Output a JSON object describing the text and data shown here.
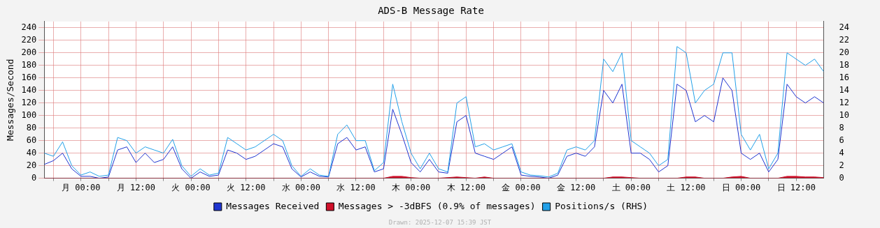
{
  "chart_data": {
    "type": "line",
    "title": "ADS-B Message Rate",
    "ylabel": "Messages/Second",
    "x": [
      "2025-11-30T16:00",
      "2025-11-30T18:00",
      "2025-11-30T20:00",
      "2025-11-30T22:00",
      "2025-12-01T00:00",
      "2025-12-01T02:00",
      "2025-12-01T04:00",
      "2025-12-01T06:00",
      "2025-12-01T08:00",
      "2025-12-01T10:00",
      "2025-12-01T12:00",
      "2025-12-01T14:00",
      "2025-12-01T16:00",
      "2025-12-01T18:00",
      "2025-12-01T20:00",
      "2025-12-01T22:00",
      "2025-12-02T00:00",
      "2025-12-02T02:00",
      "2025-12-02T04:00",
      "2025-12-02T06:00",
      "2025-12-02T08:00",
      "2025-12-02T10:00",
      "2025-12-02T12:00",
      "2025-12-02T14:00",
      "2025-12-02T16:00",
      "2025-12-02T18:00",
      "2025-12-02T20:00",
      "2025-12-02T22:00",
      "2025-12-03T00:00",
      "2025-12-03T02:00",
      "2025-12-03T04:00",
      "2025-12-03T06:00",
      "2025-12-03T08:00",
      "2025-12-03T10:00",
      "2025-12-03T12:00",
      "2025-12-03T14:00",
      "2025-12-03T16:00",
      "2025-12-03T18:00",
      "2025-12-03T20:00",
      "2025-12-03T22:00",
      "2025-12-04T00:00",
      "2025-12-04T02:00",
      "2025-12-04T04:00",
      "2025-12-04T06:00",
      "2025-12-04T08:00",
      "2025-12-04T10:00",
      "2025-12-04T12:00",
      "2025-12-04T14:00",
      "2025-12-04T16:00",
      "2025-12-04T18:00",
      "2025-12-04T20:00",
      "2025-12-04T22:00",
      "2025-12-05T00:00",
      "2025-12-05T02:00",
      "2025-12-05T04:00",
      "2025-12-05T06:00",
      "2025-12-05T08:00",
      "2025-12-05T10:00",
      "2025-12-05T12:00",
      "2025-12-05T14:00",
      "2025-12-05T16:00",
      "2025-12-05T18:00",
      "2025-12-05T20:00",
      "2025-12-05T22:00",
      "2025-12-06T00:00",
      "2025-12-06T02:00",
      "2025-12-06T04:00",
      "2025-12-06T06:00",
      "2025-12-06T08:00",
      "2025-12-06T10:00",
      "2025-12-06T12:00",
      "2025-12-06T14:00",
      "2025-12-06T16:00",
      "2025-12-06T18:00",
      "2025-12-06T20:00",
      "2025-12-06T22:00",
      "2025-12-07T00:00",
      "2025-12-07T02:00",
      "2025-12-07T04:00",
      "2025-12-07T06:00",
      "2025-12-07T08:00",
      "2025-12-07T10:00",
      "2025-12-07T12:00",
      "2025-12-07T14:00",
      "2025-12-07T16:00",
      "2025-12-07T18:00"
    ],
    "xlim": [
      "2025-11-30T16:00",
      "2025-12-07T18:00"
    ],
    "xticks": [
      {
        "value": "2025-11-30T18:00",
        "label": null
      },
      {
        "value": "2025-12-01T00:00",
        "label": "月 00:00"
      },
      {
        "value": "2025-12-01T06:00",
        "label": null
      },
      {
        "value": "2025-12-01T12:00",
        "label": "月 12:00"
      },
      {
        "value": "2025-12-01T18:00",
        "label": null
      },
      {
        "value": "2025-12-02T00:00",
        "label": "火 00:00"
      },
      {
        "value": "2025-12-02T06:00",
        "label": null
      },
      {
        "value": "2025-12-02T12:00",
        "label": "火 12:00"
      },
      {
        "value": "2025-12-02T18:00",
        "label": null
      },
      {
        "value": "2025-12-03T00:00",
        "label": "水 00:00"
      },
      {
        "value": "2025-12-03T06:00",
        "label": null
      },
      {
        "value": "2025-12-03T12:00",
        "label": "水 12:00"
      },
      {
        "value": "2025-12-03T18:00",
        "label": null
      },
      {
        "value": "2025-12-04T00:00",
        "label": "木 00:00"
      },
      {
        "value": "2025-12-04T06:00",
        "label": null
      },
      {
        "value": "2025-12-04T12:00",
        "label": "木 12:00"
      },
      {
        "value": "2025-12-04T18:00",
        "label": null
      },
      {
        "value": "2025-12-05T00:00",
        "label": "金 00:00"
      },
      {
        "value": "2025-12-05T06:00",
        "label": null
      },
      {
        "value": "2025-12-05T12:00",
        "label": "金 12:00"
      },
      {
        "value": "2025-12-05T18:00",
        "label": null
      },
      {
        "value": "2025-12-06T00:00",
        "label": "土 00:00"
      },
      {
        "value": "2025-12-06T06:00",
        "label": null
      },
      {
        "value": "2025-12-06T12:00",
        "label": "土 12:00"
      },
      {
        "value": "2025-12-06T18:00",
        "label": null
      },
      {
        "value": "2025-12-07T00:00",
        "label": "日 00:00"
      },
      {
        "value": "2025-12-07T06:00",
        "label": null
      },
      {
        "value": "2025-12-07T12:00",
        "label": "日 12:00"
      }
    ],
    "ylim": [
      0,
      250
    ],
    "yticks": [
      0,
      20,
      40,
      60,
      80,
      100,
      120,
      140,
      160,
      180,
      200,
      220,
      240
    ],
    "y2lim": [
      0,
      25
    ],
    "y2ticks": [
      0,
      2,
      4,
      6,
      8,
      10,
      12,
      14,
      16,
      18,
      20,
      22,
      24
    ],
    "grid": true,
    "legend": "bottom",
    "marker": "none",
    "series": [
      {
        "name": "Messages Received",
        "color": "#1f35d0",
        "values": [
          22,
          28,
          40,
          15,
          3,
          3,
          0,
          2,
          45,
          50,
          25,
          40,
          25,
          30,
          50,
          15,
          0,
          10,
          3,
          5,
          45,
          40,
          30,
          35,
          45,
          55,
          50,
          15,
          2,
          10,
          3,
          2,
          55,
          65,
          45,
          50,
          10,
          15,
          110,
          70,
          25,
          10,
          30,
          10,
          8,
          90,
          100,
          40,
          35,
          30,
          40,
          50,
          5,
          3,
          2,
          0,
          5,
          35,
          40,
          35,
          50,
          140,
          120,
          150,
          40,
          40,
          30,
          10,
          20,
          150,
          140,
          90,
          100,
          90,
          160,
          140,
          40,
          30,
          40,
          10,
          30,
          150,
          130,
          120,
          130,
          120
        ]
      },
      {
        "name": "Messages > -3dBFS (0.9% of messages)",
        "type": "area",
        "color": "#d0102a",
        "values": [
          0,
          0,
          0,
          0,
          0,
          0,
          0,
          0,
          0,
          0,
          0,
          0,
          0,
          0,
          0,
          0,
          0,
          0,
          0,
          0,
          0,
          0,
          0,
          0,
          0,
          0,
          0,
          0,
          0,
          0,
          0,
          0,
          0,
          0,
          0,
          0,
          0,
          0,
          3,
          3,
          1,
          0,
          0,
          0,
          1,
          2,
          1,
          0,
          2,
          0,
          0,
          0,
          0,
          0,
          0,
          0,
          0,
          0,
          0,
          0,
          0,
          0,
          2,
          2,
          1,
          0,
          0,
          0,
          0,
          0,
          2,
          2,
          0,
          0,
          0,
          2,
          3,
          0,
          0,
          0,
          0,
          3,
          3,
          2,
          2,
          1
        ]
      },
      {
        "name": "Positions/s (RHS)",
        "color": "#22a0e8",
        "axis": "y2",
        "values": [
          4,
          3.5,
          5.8,
          2,
          0.5,
          1,
          0.3,
          0.5,
          6.5,
          6,
          4,
          5,
          4.5,
          4,
          6.2,
          2,
          0.3,
          1.5,
          0.5,
          0.8,
          6.5,
          5.5,
          4.5,
          5,
          6,
          7,
          6,
          2,
          0.3,
          1.5,
          0.5,
          0.3,
          7,
          8.5,
          6,
          6,
          1.2,
          2.5,
          15,
          9,
          4,
          1.5,
          4,
          1.5,
          1,
          12,
          13,
          5,
          5.5,
          4.5,
          5,
          5.5,
          1,
          0.5,
          0.4,
          0.2,
          0.8,
          4.5,
          5,
          4.5,
          6,
          19,
          17,
          20,
          6,
          5,
          4,
          2,
          3,
          21,
          20,
          12,
          14,
          15,
          20,
          20,
          7,
          4.5,
          7,
          1.5,
          4,
          20,
          19,
          18,
          19,
          17
        ]
      }
    ],
    "annotations": [
      "Drawn: 2025-12-07 15:39 JST"
    ]
  }
}
